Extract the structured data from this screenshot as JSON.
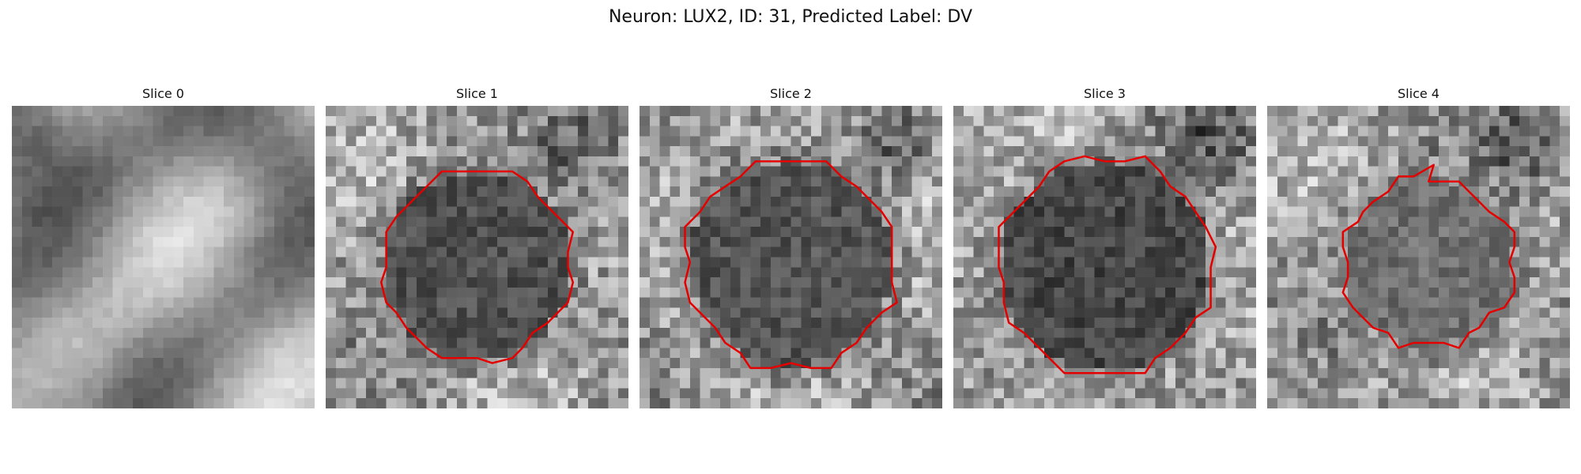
{
  "figure": {
    "title": "Neuron: LUX2, ID: 31, Predicted Label: DV",
    "contour_color": "#e50000"
  },
  "panels": [
    {
      "label": "Slice 0",
      "has_contour": false,
      "contour_size": 0,
      "contour_darkness": 0,
      "seed": 11,
      "background": "smooth"
    },
    {
      "label": "Slice 1",
      "has_contour": true,
      "contour_size": 0.62,
      "contour_darkness": 0.72,
      "seed": 23,
      "background": "noisy"
    },
    {
      "label": "Slice 2",
      "has_contour": true,
      "contour_size": 0.68,
      "contour_darkness": 0.7,
      "seed": 37,
      "background": "noisy"
    },
    {
      "label": "Slice 3",
      "has_contour": true,
      "contour_size": 0.7,
      "contour_darkness": 0.78,
      "seed": 41,
      "background": "noisy"
    },
    {
      "label": "Slice 4",
      "has_contour": true,
      "contour_size": 0.55,
      "contour_darkness": 0.55,
      "seed": 53,
      "background": "noisy"
    }
  ]
}
